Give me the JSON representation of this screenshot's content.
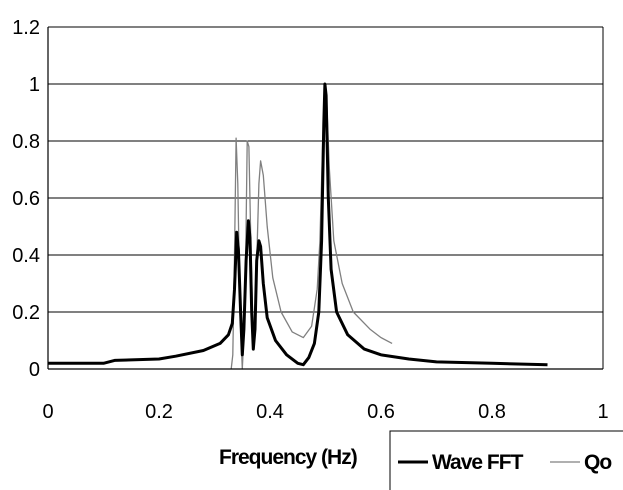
{
  "chart_data": {
    "type": "line",
    "title": "",
    "xlabel": "Frequency (Hz)",
    "ylabel": "",
    "xlim": [
      0,
      1
    ],
    "ylim": [
      0,
      1.2
    ],
    "x_ticks": [
      "0",
      "0.2",
      "0.4",
      "0.6",
      "0.8",
      "1"
    ],
    "y_ticks": [
      "0",
      "0.2",
      "0.4",
      "0.6",
      "0.8",
      "1",
      "1.2"
    ],
    "grid": "horizontal",
    "legend_position": "bottom-right",
    "series": [
      {
        "name": "Wave FFT",
        "color": "#000000",
        "style": "thick",
        "points": [
          [
            0,
            0.02
          ],
          [
            0.1,
            0.02
          ],
          [
            0.12,
            0.03
          ],
          [
            0.2,
            0.035
          ],
          [
            0.23,
            0.045
          ],
          [
            0.28,
            0.065
          ],
          [
            0.31,
            0.09
          ],
          [
            0.325,
            0.12
          ],
          [
            0.332,
            0.16
          ],
          [
            0.336,
            0.28
          ],
          [
            0.34,
            0.48
          ],
          [
            0.343,
            0.42
          ],
          [
            0.347,
            0.2
          ],
          [
            0.35,
            0.05
          ],
          [
            0.353,
            0.14
          ],
          [
            0.357,
            0.38
          ],
          [
            0.361,
            0.52
          ],
          [
            0.364,
            0.46
          ],
          [
            0.367,
            0.2
          ],
          [
            0.37,
            0.07
          ],
          [
            0.373,
            0.14
          ],
          [
            0.376,
            0.38
          ],
          [
            0.38,
            0.45
          ],
          [
            0.383,
            0.43
          ],
          [
            0.388,
            0.3
          ],
          [
            0.395,
            0.18
          ],
          [
            0.41,
            0.1
          ],
          [
            0.43,
            0.05
          ],
          [
            0.45,
            0.02
          ],
          [
            0.46,
            0.015
          ],
          [
            0.47,
            0.04
          ],
          [
            0.48,
            0.09
          ],
          [
            0.488,
            0.2
          ],
          [
            0.493,
            0.45
          ],
          [
            0.497,
            0.86
          ],
          [
            0.499,
            1.0
          ],
          [
            0.501,
            0.96
          ],
          [
            0.505,
            0.6
          ],
          [
            0.51,
            0.35
          ],
          [
            0.52,
            0.2
          ],
          [
            0.54,
            0.12
          ],
          [
            0.57,
            0.07
          ],
          [
            0.6,
            0.05
          ],
          [
            0.65,
            0.035
          ],
          [
            0.7,
            0.025
          ],
          [
            0.8,
            0.02
          ],
          [
            0.9,
            0.015
          ]
        ]
      },
      {
        "name": "Qo",
        "color": "#808080",
        "style": "thin",
        "points": [
          [
            0.33,
            0
          ],
          [
            0.333,
            0.05
          ],
          [
            0.336,
            0.4
          ],
          [
            0.339,
            0.81
          ],
          [
            0.342,
            0.65
          ],
          [
            0.346,
            0.2
          ],
          [
            0.35,
            0.0
          ],
          [
            0.355,
            0.2
          ],
          [
            0.359,
            0.8
          ],
          [
            0.362,
            0.78
          ],
          [
            0.366,
            0.4
          ],
          [
            0.37,
            0.1
          ],
          [
            0.375,
            0.3
          ],
          [
            0.38,
            0.65
          ],
          [
            0.383,
            0.73
          ],
          [
            0.388,
            0.68
          ],
          [
            0.395,
            0.5
          ],
          [
            0.405,
            0.32
          ],
          [
            0.42,
            0.2
          ],
          [
            0.44,
            0.13
          ],
          [
            0.46,
            0.11
          ],
          [
            0.475,
            0.15
          ],
          [
            0.485,
            0.28
          ],
          [
            0.49,
            0.45
          ],
          [
            0.495,
            0.8
          ],
          [
            0.499,
            1.0
          ],
          [
            0.502,
            0.95
          ],
          [
            0.507,
            0.7
          ],
          [
            0.515,
            0.45
          ],
          [
            0.53,
            0.3
          ],
          [
            0.55,
            0.2
          ],
          [
            0.58,
            0.14
          ],
          [
            0.6,
            0.11
          ],
          [
            0.62,
            0.09
          ]
        ]
      }
    ]
  }
}
